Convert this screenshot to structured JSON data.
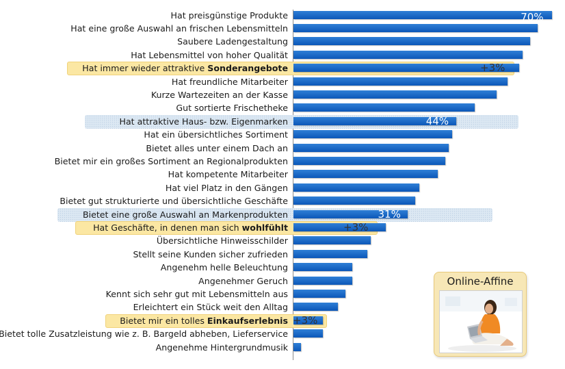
{
  "chart_data": {
    "type": "bar",
    "orientation": "horizontal",
    "unit": "%",
    "categories": [
      "Hat preisgünstige Produkte",
      "Hat eine große Auswahl an frischen Lebensmitteln",
      "Saubere Ladengestaltung",
      "Hat Lebensmittel von hoher Qualität",
      "Hat immer wieder attraktive Sonderangebote",
      "Hat freundliche Mitarbeiter",
      "Kurze Wartezeiten an der Kasse",
      "Gut sortierte Frischetheke",
      "Hat attraktive Haus- bzw. Eigenmarken",
      "Hat ein übersichtliches Sortiment",
      "Bietet alles unter einem Dach an",
      "Bietet mir ein großes Sortiment an Regionalprodukten",
      "Hat kompetente Mitarbeiter",
      "Hat viel Platz in den Gängen",
      "Bietet gut strukturierte und übersichtliche Geschäfte",
      "Bietet eine große Auswahl an Markenprodukten",
      "Hat Geschäfte, in denen man sich wohlfühlt",
      "Übersichtliche Hinweisschilder",
      "Stellt seine Kunden sicher zufrieden",
      "Angenehm helle Beleuchtung",
      "Angenehmer Geruch",
      "Kennt sich sehr gut mit Lebensmitteln aus",
      "Erleichtert ein Stück weit den Alltag",
      "Bietet mir ein tolles Einkaufserlebnis",
      "Bietet tolle Zusatzleistung wie z. B. Bargeld abheben, Lieferservice",
      "Angenehme Hintergrundmusik"
    ],
    "bold_parts": [
      "",
      "",
      "",
      "",
      "Sonderangebote",
      "",
      "",
      "",
      "",
      "",
      "",
      "",
      "",
      "",
      "",
      "",
      "wohlfühlt",
      "",
      "",
      "",
      "",
      "",
      "",
      "Einkaufserlebnis",
      "",
      ""
    ],
    "values": [
      70,
      66,
      64,
      62,
      61,
      58,
      55,
      49,
      44,
      43,
      42,
      41,
      39,
      34,
      33,
      31,
      25,
      21,
      20,
      16,
      16,
      14,
      12,
      8,
      8,
      2
    ],
    "highlight": [
      "none",
      "none",
      "none",
      "none",
      "yellow",
      "none",
      "none",
      "none",
      "blue",
      "none",
      "none",
      "none",
      "none",
      "none",
      "none",
      "blue",
      "yellow",
      "none",
      "none",
      "none",
      "none",
      "none",
      "none",
      "yellow",
      "none",
      "none"
    ],
    "data_labels": {
      "0": "70%",
      "8": "44%",
      "15": "31%"
    },
    "deltas": {
      "4": "+3%",
      "16": "+3%",
      "23": "+3%"
    },
    "xlim": [
      0,
      72
    ],
    "grid": false,
    "legend": "none"
  },
  "inset": {
    "title": "Online-Affine",
    "icon": "woman-with-laptop-photo"
  },
  "colors": {
    "bar": "#0b57b8",
    "highlight_yellow": "#fbe7a3",
    "highlight_blue": "#dce8f3"
  }
}
